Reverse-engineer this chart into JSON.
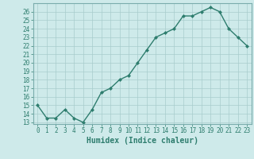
{
  "x": [
    0,
    1,
    2,
    3,
    4,
    5,
    6,
    7,
    8,
    9,
    10,
    11,
    12,
    13,
    14,
    15,
    16,
    17,
    18,
    19,
    20,
    21,
    22,
    23
  ],
  "y": [
    15,
    13.5,
    13.5,
    14.5,
    13.5,
    13,
    14.5,
    16.5,
    17,
    18,
    18.5,
    20,
    21.5,
    23,
    23.5,
    24,
    25.5,
    25.5,
    26,
    26.5,
    26,
    24,
    23,
    22
  ],
  "line_color": "#2e7d6e",
  "marker": "D",
  "marker_size": 2.0,
  "xlabel": "Humidex (Indice chaleur)",
  "xlim": [
    -0.5,
    23.5
  ],
  "ylim": [
    12.8,
    27.0
  ],
  "yticks": [
    13,
    14,
    15,
    16,
    17,
    18,
    19,
    20,
    21,
    22,
    23,
    24,
    25,
    26
  ],
  "xtick_labels": [
    "0",
    "1",
    "2",
    "3",
    "4",
    "5",
    "6",
    "7",
    "8",
    "9",
    "10",
    "11",
    "12",
    "13",
    "14",
    "15",
    "16",
    "17",
    "18",
    "19",
    "20",
    "21",
    "22",
    "23"
  ],
  "bg_color": "#ceeaea",
  "grid_color": "#a8cccc",
  "font_color": "#2e7d6e",
  "axis_color": "#7aacac",
  "tick_fontsize": 5.5,
  "xlabel_fontsize": 7.0,
  "linewidth": 1.0
}
